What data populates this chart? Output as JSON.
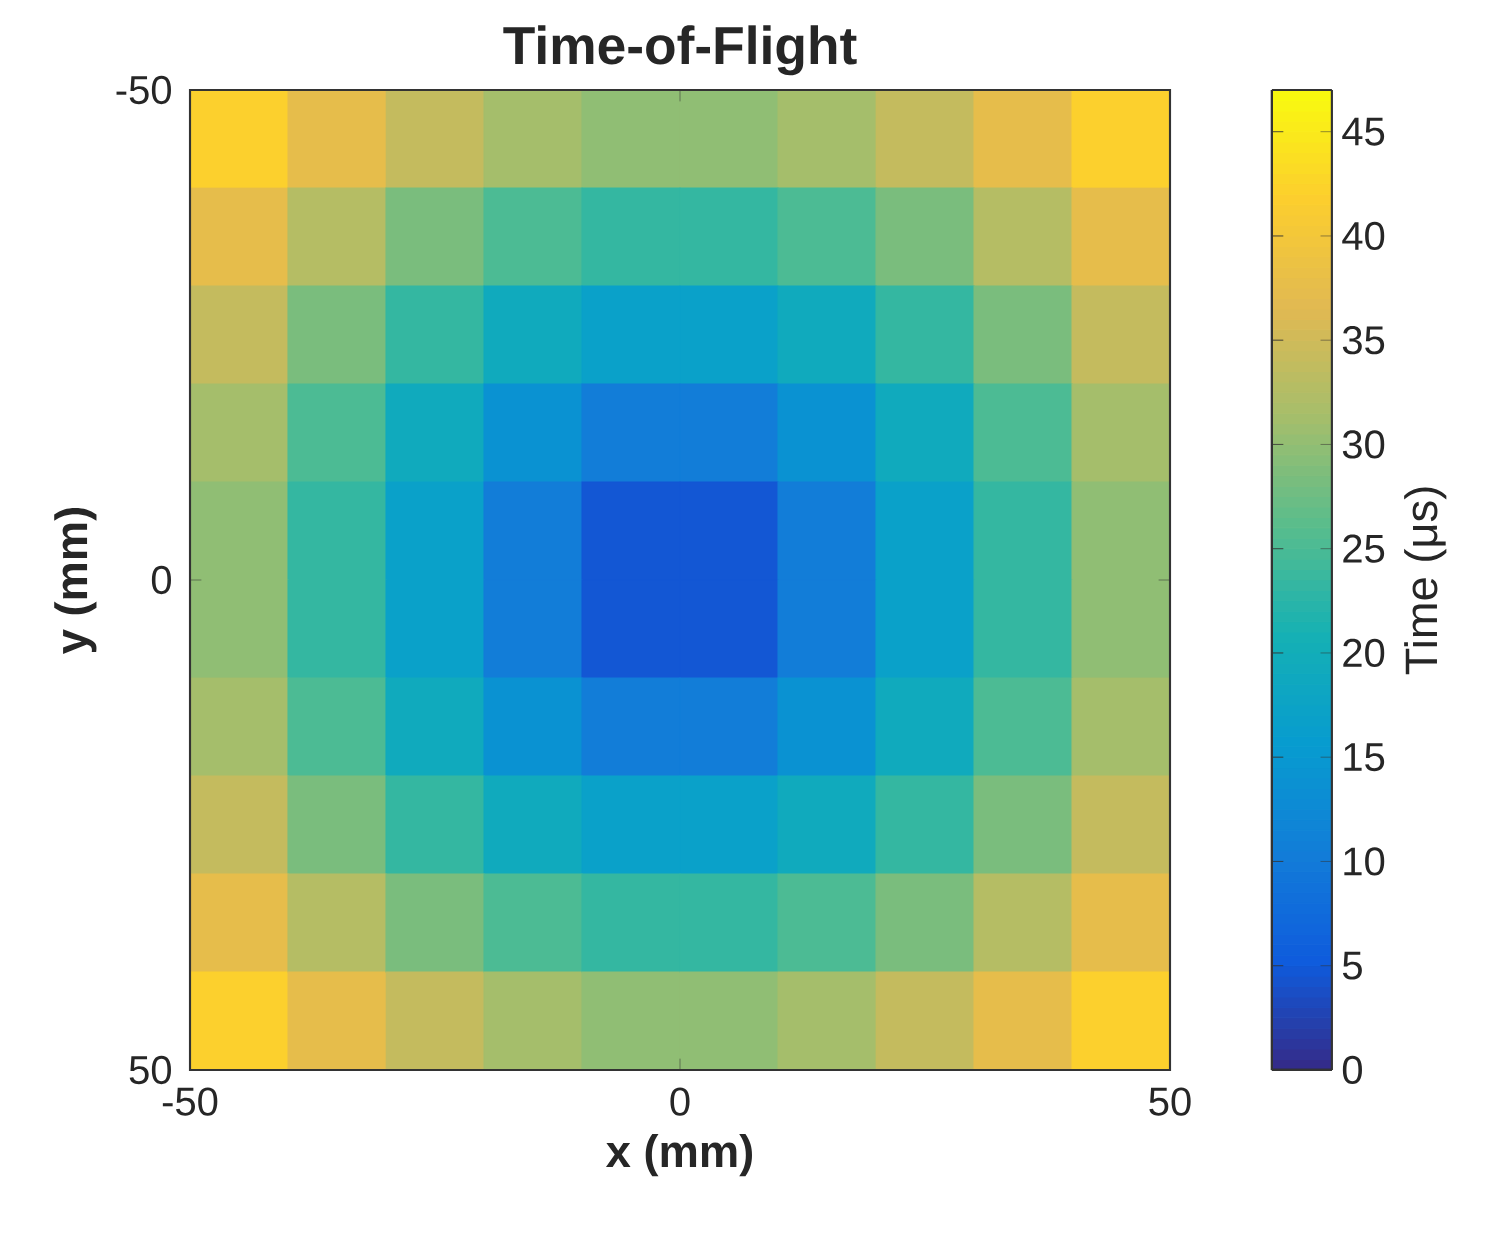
{
  "chart_data": {
    "type": "heatmap",
    "title": "Time-of-Flight",
    "xlabel": "x (mm)",
    "ylabel": "y (mm)",
    "clabel": "Time  (μs)",
    "x": [
      -45,
      -35,
      -25,
      -15,
      -5,
      5,
      15,
      25,
      35,
      45
    ],
    "xlim": [
      -50,
      50
    ],
    "xticks": [
      -50,
      0,
      50
    ],
    "ylim": [
      50,
      -50
    ],
    "yticks": [
      -50,
      0,
      50
    ],
    "cells": [
      [
        42.0,
        37.6,
        34.0,
        31.3,
        29.9,
        29.9,
        31.3,
        34.0,
        37.6,
        42.0
      ],
      [
        37.6,
        32.7,
        28.4,
        25.1,
        23.3,
        23.3,
        25.1,
        28.4,
        32.7,
        37.6
      ],
      [
        34.0,
        28.4,
        23.3,
        19.2,
        16.8,
        16.8,
        19.2,
        23.3,
        28.4,
        34.0
      ],
      [
        31.3,
        25.1,
        19.2,
        14.0,
        10.4,
        10.4,
        14.0,
        19.2,
        25.1,
        31.3
      ],
      [
        29.9,
        23.3,
        16.8,
        10.4,
        4.7,
        4.7,
        10.4,
        16.8,
        23.3,
        29.9
      ],
      [
        29.9,
        23.3,
        16.8,
        10.4,
        4.7,
        4.7,
        10.4,
        16.8,
        23.3,
        29.9
      ],
      [
        31.3,
        25.1,
        19.2,
        14.0,
        10.4,
        10.4,
        14.0,
        19.2,
        25.1,
        31.3
      ],
      [
        34.0,
        28.4,
        23.3,
        19.2,
        16.8,
        16.8,
        19.2,
        23.3,
        28.4,
        34.0
      ],
      [
        37.6,
        32.7,
        28.4,
        25.1,
        23.3,
        23.3,
        25.1,
        28.4,
        32.7,
        37.6
      ],
      [
        42.0,
        37.6,
        34.0,
        31.3,
        29.9,
        29.9,
        31.3,
        34.0,
        37.6,
        42.0
      ]
    ],
    "clim": [
      0,
      47
    ],
    "cticks": [
      0,
      5,
      10,
      15,
      20,
      25,
      30,
      35,
      40,
      45
    ]
  }
}
